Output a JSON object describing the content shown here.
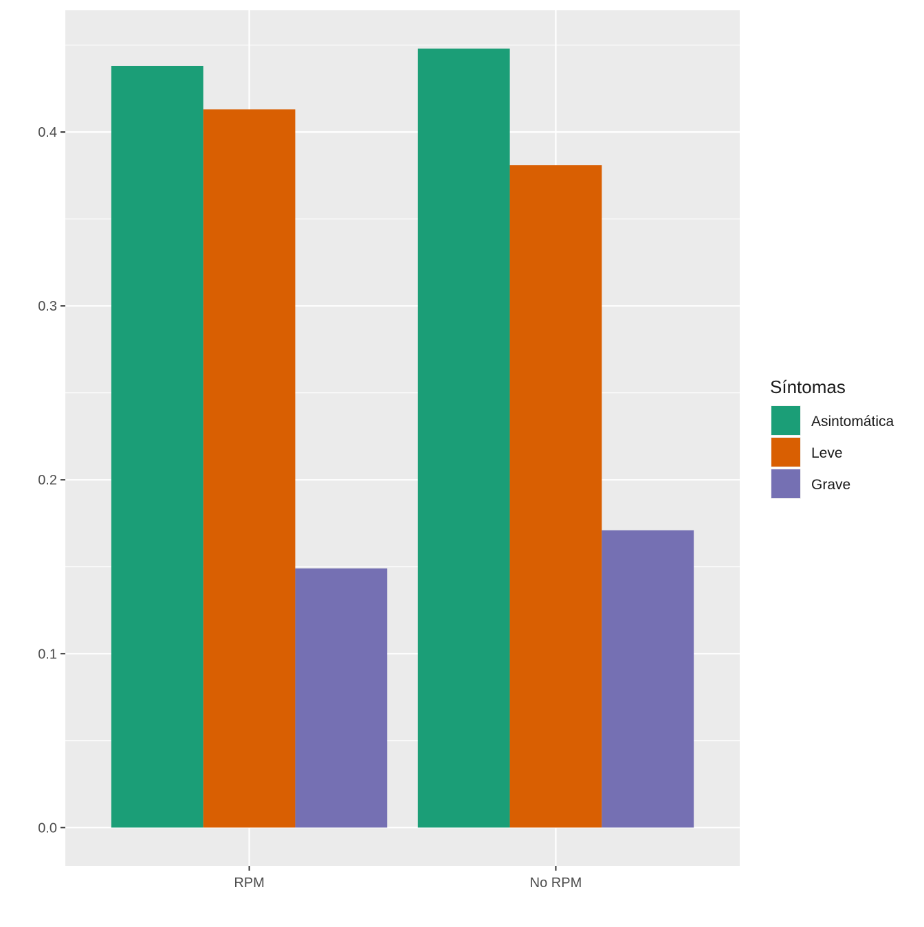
{
  "chart_data": {
    "type": "bar",
    "title": "",
    "xlabel": "",
    "ylabel": "",
    "categories": [
      "RPM",
      "No RPM"
    ],
    "series": [
      {
        "name": "Asintomática",
        "values": [
          0.438,
          0.448
        ],
        "color": "#1B9E77"
      },
      {
        "name": "Leve",
        "values": [
          0.413,
          0.381
        ],
        "color": "#D95F02"
      },
      {
        "name": "Grave",
        "values": [
          0.149,
          0.171
        ],
        "color": "#7570B3"
      }
    ],
    "ylim": [
      -0.022,
      0.47
    ],
    "yticks": [
      0.0,
      0.1,
      0.2,
      0.3,
      0.4
    ],
    "ytick_labels": [
      "0.0",
      "0.1",
      "0.2",
      "0.3",
      "0.4"
    ],
    "grid": true,
    "legend": {
      "title": "Síntomas",
      "position": "right"
    }
  }
}
